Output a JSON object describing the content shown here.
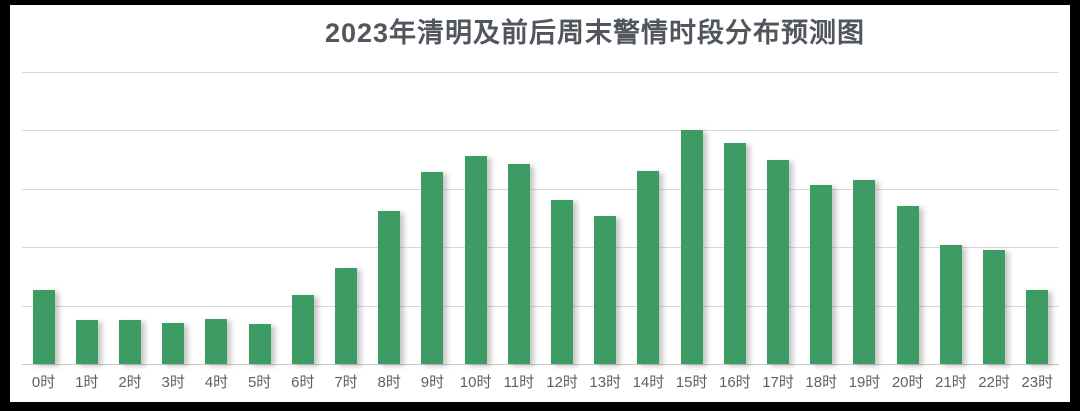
{
  "chart_data": {
    "type": "bar",
    "title": "2023年清明及前后周末警情时段分布预测图",
    "categories": [
      "0时",
      "1时",
      "2时",
      "3时",
      "4时",
      "5时",
      "6时",
      "7时",
      "8时",
      "9时",
      "10时",
      "11时",
      "12时",
      "13时",
      "14时",
      "15时",
      "16时",
      "17时",
      "18时",
      "19时",
      "20时",
      "21时",
      "22时",
      "23时"
    ],
    "values": [
      1.27,
      0.75,
      0.75,
      0.71,
      0.77,
      0.68,
      1.19,
      1.64,
      2.62,
      3.28,
      3.56,
      3.43,
      2.8,
      2.53,
      3.3,
      4.0,
      3.78,
      3.5,
      3.06,
      3.15,
      2.7,
      2.04,
      1.95,
      1.27
    ],
    "xlabel": "",
    "ylabel": "",
    "ylim": [
      0,
      5
    ],
    "y_tick_labels_visible": false,
    "gridlines": "horizontal, 6 lines (5 equal intervals)",
    "legend": "none",
    "value_note": "no numeric y-axis labels shown in image; values measured in gridline units (plot height = 5 units)"
  },
  "style": {
    "bar_color": "#3d9b64",
    "gridline_color": "#d9d9d9",
    "axis_line_color": "#c7c7c7",
    "title_color": "#51565d",
    "label_color": "#5d6166",
    "background_color": "#ffffff",
    "frame_color": "#000000"
  }
}
